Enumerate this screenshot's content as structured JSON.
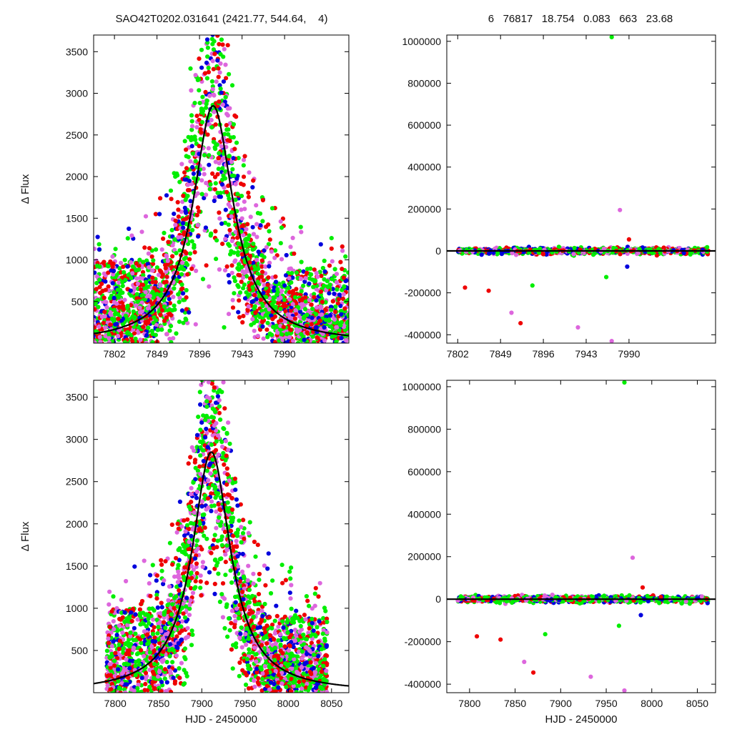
{
  "header": {
    "title_left": "SAO42T0202.031641 (2421.77, 544.64,    4)",
    "title_right": "6   76817   18.754   0.083   663   23.68"
  },
  "colors": {
    "blue": "#0000dd",
    "red": "#ee0000",
    "pink": "#dd66dd",
    "green": "#00ee00",
    "model": "#000000",
    "frame": "#000000"
  },
  "chart_data": [
    {
      "id": "top-left",
      "type": "scatter",
      "title": "",
      "xlabel": "",
      "ylabel": "Δ Flux",
      "xlim": [
        7779,
        8061
      ],
      "ylim": [
        0,
        3700
      ],
      "xticks": [
        7802,
        7849,
        7896,
        7943,
        7990
      ],
      "yticks": [
        500,
        1000,
        1500,
        2000,
        2500,
        3000,
        3500
      ],
      "model": {
        "shape": "peak",
        "peak_x": 7911,
        "peak_y": 2850,
        "half_width": 27,
        "baseline": 0
      },
      "series_colors": [
        "blue",
        "red",
        "pink",
        "green"
      ],
      "data_range_x": [
        7779,
        8061
      ],
      "data_range_y": [
        0,
        3700
      ]
    },
    {
      "id": "top-right",
      "type": "scatter",
      "title": "",
      "xlabel": "",
      "ylabel": "",
      "xlim": [
        7790,
        8085
      ],
      "ylim": [
        -440000,
        1030000
      ],
      "xticks": [
        7802,
        7849,
        7896,
        7943,
        7990
      ],
      "yticks": [
        -400000,
        -200000,
        0,
        200000,
        400000,
        600000,
        800000,
        1000000
      ],
      "model": {
        "shape": "flat",
        "value": 0
      },
      "series_colors": [
        "blue",
        "red",
        "pink",
        "green"
      ],
      "outliers": [
        {
          "x": 7810,
          "y": -175000,
          "color": "red"
        },
        {
          "x": 7836,
          "y": -190000,
          "color": "red"
        },
        {
          "x": 7861,
          "y": -295000,
          "color": "pink"
        },
        {
          "x": 7871,
          "y": -345000,
          "color": "red"
        },
        {
          "x": 7884,
          "y": -165000,
          "color": "green"
        },
        {
          "x": 7934,
          "y": -365000,
          "color": "pink"
        },
        {
          "x": 7971,
          "y": -430000,
          "color": "pink"
        },
        {
          "x": 7971,
          "y": 1020000,
          "color": "green"
        },
        {
          "x": 7980,
          "y": 195000,
          "color": "pink"
        },
        {
          "x": 7990,
          "y": 55000,
          "color": "red"
        },
        {
          "x": 7965,
          "y": -125000,
          "color": "green"
        },
        {
          "x": 7988,
          "y": -75000,
          "color": "blue"
        }
      ]
    },
    {
      "id": "bottom-left",
      "type": "scatter",
      "title": "",
      "xlabel": "HJD - 2450000",
      "ylabel": "Δ Flux",
      "xlim": [
        7775,
        8070
      ],
      "ylim": [
        0,
        3700
      ],
      "xticks": [
        7800,
        7850,
        7900,
        7950,
        8000,
        8050
      ],
      "yticks": [
        500,
        1000,
        1500,
        2000,
        2500,
        3000,
        3500
      ],
      "model": {
        "shape": "peak",
        "peak_x": 7911,
        "peak_y": 2850,
        "half_width": 27,
        "baseline": 0
      },
      "series_colors": [
        "blue",
        "red",
        "pink",
        "green"
      ],
      "data_range_x": [
        7790,
        8045
      ],
      "data_range_y": [
        0,
        3700
      ]
    },
    {
      "id": "bottom-right",
      "type": "scatter",
      "title": "",
      "xlabel": "HJD - 2450000",
      "ylabel": "",
      "xlim": [
        7775,
        8070
      ],
      "ylim": [
        -440000,
        1030000
      ],
      "xticks": [
        7800,
        7850,
        7900,
        7950,
        8000,
        8050
      ],
      "yticks": [
        -400000,
        -200000,
        0,
        200000,
        400000,
        600000,
        800000,
        1000000
      ],
      "model": {
        "shape": "flat",
        "value": 0
      },
      "series_colors": [
        "blue",
        "red",
        "pink",
        "green"
      ],
      "outliers": [
        {
          "x": 7808,
          "y": -175000,
          "color": "red"
        },
        {
          "x": 7834,
          "y": -190000,
          "color": "red"
        },
        {
          "x": 7860,
          "y": -295000,
          "color": "pink"
        },
        {
          "x": 7870,
          "y": -345000,
          "color": "red"
        },
        {
          "x": 7883,
          "y": -165000,
          "color": "green"
        },
        {
          "x": 7933,
          "y": -365000,
          "color": "pink"
        },
        {
          "x": 7970,
          "y": -430000,
          "color": "pink"
        },
        {
          "x": 7970,
          "y": 1020000,
          "color": "green"
        },
        {
          "x": 7979,
          "y": 195000,
          "color": "pink"
        },
        {
          "x": 7990,
          "y": 55000,
          "color": "red"
        },
        {
          "x": 7964,
          "y": -125000,
          "color": "green"
        },
        {
          "x": 7988,
          "y": -75000,
          "color": "blue"
        }
      ]
    }
  ]
}
